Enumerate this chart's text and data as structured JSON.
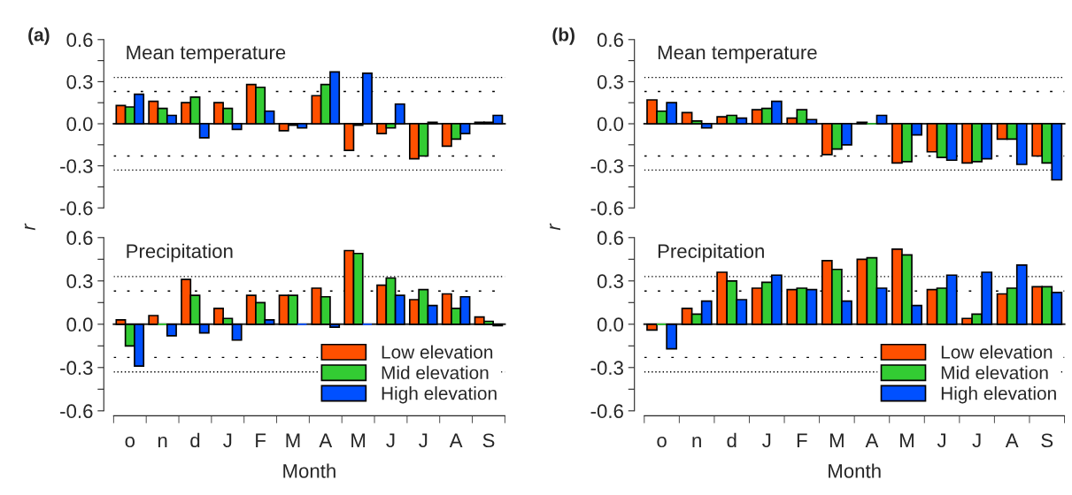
{
  "chart_data": [
    {
      "type": "bar",
      "title": "Mean temperature",
      "annotations": [
        "(a)"
      ],
      "categories": [
        null,
        null,
        null,
        null,
        null,
        null,
        null,
        null,
        null,
        null,
        null,
        null
      ],
      "series": [
        {
          "color": "#ff5000",
          "values": [
            0.13,
            0.16,
            0.15,
            0.15,
            0.28,
            -0.05,
            0.2,
            -0.19,
            -0.07,
            -0.25,
            -0.16,
            0.01
          ]
        },
        {
          "color": "#33cc33",
          "values": [
            0.12,
            0.11,
            0.19,
            0.11,
            0.26,
            -0.01,
            0.28,
            -0.01,
            -0.03,
            -0.23,
            -0.11,
            0.01
          ]
        },
        {
          "color": "#0050ff",
          "values": [
            0.21,
            0.06,
            -0.1,
            -0.04,
            0.09,
            -0.03,
            0.37,
            0.36,
            0.14,
            0.01,
            -0.07,
            0.06
          ]
        }
      ],
      "ylim": [
        -0.6,
        0.6
      ],
      "yticks": [
        {
          "value": -0.6,
          "label": "-0.6"
        },
        {
          "value": -0.45,
          "label": null
        },
        {
          "value": -0.3,
          "label": "-0.3"
        },
        {
          "value": -0.15,
          "label": null
        },
        {
          "value": 0,
          "label": "0.0"
        },
        {
          "value": 0.15,
          "label": null
        },
        {
          "value": 0.3,
          "label": "0.3"
        },
        {
          "value": 0.45,
          "label": null
        },
        {
          "value": 0.6,
          "label": "0.6"
        }
      ],
      "ref_lines": [
        {
          "axis": "y",
          "value": 0.33,
          "line_style": "dotted"
        },
        {
          "axis": "y",
          "value": 0.23,
          "line_style": "dashed"
        },
        {
          "axis": "y",
          "value": -0.23,
          "line_style": "dashed"
        },
        {
          "axis": "y",
          "value": -0.33,
          "line_style": "dotted"
        }
      ],
      "tick_labels": "y",
      "legend": false
    },
    {
      "type": "bar",
      "title": "Mean temperature",
      "annotations": [
        "(b)"
      ],
      "categories": [
        null,
        null,
        null,
        null,
        null,
        null,
        null,
        null,
        null,
        null,
        null,
        null
      ],
      "series": [
        {
          "color": "#ff5000",
          "values": [
            0.17,
            0.08,
            0.05,
            0.1,
            0.04,
            -0.22,
            0.01,
            -0.28,
            -0.2,
            -0.28,
            -0.11,
            -0.23
          ]
        },
        {
          "color": "#33cc33",
          "values": [
            0.09,
            0.02,
            0.06,
            0.11,
            0.1,
            -0.18,
            0.0,
            -0.27,
            -0.24,
            -0.27,
            -0.11,
            -0.28
          ]
        },
        {
          "color": "#0050ff",
          "values": [
            0.15,
            -0.03,
            0.04,
            0.16,
            0.03,
            -0.15,
            0.06,
            -0.08,
            -0.26,
            -0.25,
            -0.29,
            -0.4
          ]
        }
      ],
      "ylim": [
        -0.6,
        0.6
      ],
      "yticks": [
        {
          "value": -0.6,
          "label": "-0.6"
        },
        {
          "value": -0.45,
          "label": null
        },
        {
          "value": -0.3,
          "label": "-0.3"
        },
        {
          "value": -0.15,
          "label": null
        },
        {
          "value": 0,
          "label": "0.0"
        },
        {
          "value": 0.15,
          "label": null
        },
        {
          "value": 0.3,
          "label": "0.3"
        },
        {
          "value": 0.45,
          "label": null
        },
        {
          "value": 0.6,
          "label": "0.6"
        }
      ],
      "ref_lines": [
        {
          "axis": "y",
          "value": 0.33,
          "line_style": "dotted"
        },
        {
          "axis": "y",
          "value": 0.23,
          "line_style": "dashed"
        },
        {
          "axis": "y",
          "value": -0.23,
          "line_style": "dashed"
        },
        {
          "axis": "y",
          "value": -0.33,
          "line_style": "dotted"
        }
      ],
      "tick_labels": "y",
      "legend": false
    },
    {
      "type": "bar",
      "title": "Precipitation",
      "xlabel": "Month",
      "ylabel": "r",
      "categories": [
        "o",
        "n",
        "d",
        "J",
        "F",
        "M",
        "A",
        "M",
        "J",
        "J",
        "A",
        "S"
      ],
      "series": [
        {
          "name": "Low elevation",
          "color": "#ff5000",
          "values": [
            0.03,
            0.06,
            0.31,
            0.11,
            0.2,
            0.2,
            0.25,
            0.51,
            0.27,
            0.17,
            0.21,
            0.05
          ]
        },
        {
          "name": "Mid elevation",
          "color": "#33cc33",
          "values": [
            -0.15,
            0.0,
            0.2,
            0.04,
            0.15,
            0.2,
            0.19,
            0.49,
            0.32,
            0.24,
            0.11,
            0.02
          ]
        },
        {
          "name": "High elevation",
          "color": "#0050ff",
          "values": [
            -0.29,
            -0.08,
            -0.06,
            -0.11,
            0.03,
            0.0,
            -0.02,
            0.0,
            0.2,
            0.13,
            0.19,
            -0.01
          ]
        }
      ],
      "ylim": [
        -0.6,
        0.6
      ],
      "yticks": [
        {
          "value": -0.6,
          "label": "-0.6"
        },
        {
          "value": -0.45,
          "label": null
        },
        {
          "value": -0.3,
          "label": "-0.3"
        },
        {
          "value": -0.15,
          "label": null
        },
        {
          "value": 0,
          "label": "0.0"
        },
        {
          "value": 0.15,
          "label": null
        },
        {
          "value": 0.3,
          "label": "0.3"
        },
        {
          "value": 0.45,
          "label": null
        },
        {
          "value": 0.6,
          "label": "0.6"
        }
      ],
      "ref_lines": [
        {
          "axis": "y",
          "value": 0.33,
          "line_style": "dotted"
        },
        {
          "axis": "y",
          "value": 0.23,
          "line_style": "dashed"
        },
        {
          "axis": "y",
          "value": -0.23,
          "line_style": "dashed"
        },
        {
          "axis": "y",
          "value": -0.33,
          "line_style": "dotted"
        }
      ],
      "legend": "bottom right"
    },
    {
      "type": "bar",
      "title": "Precipitation",
      "xlabel": "Month",
      "ylabel": "r",
      "categories": [
        "o",
        "n",
        "d",
        "J",
        "F",
        "M",
        "A",
        "M",
        "J",
        "J",
        "A",
        "S"
      ],
      "series": [
        {
          "name": "Low elevation",
          "color": "#ff5000",
          "values": [
            -0.04,
            0.11,
            0.36,
            0.25,
            0.24,
            0.44,
            0.45,
            0.52,
            0.24,
            0.04,
            0.21,
            0.26
          ]
        },
        {
          "name": "Mid elevation",
          "color": "#33cc33",
          "values": [
            0.0,
            0.07,
            0.3,
            0.29,
            0.25,
            0.38,
            0.46,
            0.48,
            0.25,
            0.07,
            0.25,
            0.26
          ]
        },
        {
          "name": "High elevation",
          "color": "#0050ff",
          "values": [
            -0.17,
            0.16,
            0.17,
            0.34,
            0.24,
            0.16,
            0.25,
            0.13,
            0.34,
            0.36,
            0.41,
            0.22
          ]
        }
      ],
      "ylim": [
        -0.6,
        0.6
      ],
      "yticks": [
        {
          "value": -0.6,
          "label": "-0.6"
        },
        {
          "value": -0.45,
          "label": null
        },
        {
          "value": -0.3,
          "label": "-0.3"
        },
        {
          "value": -0.15,
          "label": null
        },
        {
          "value": 0,
          "label": "0.0"
        },
        {
          "value": 0.15,
          "label": null
        },
        {
          "value": 0.3,
          "label": "0.3"
        },
        {
          "value": 0.45,
          "label": null
        },
        {
          "value": 0.6,
          "label": "0.6"
        }
      ],
      "ref_lines": [
        {
          "axis": "y",
          "value": 0.33,
          "line_style": "dotted"
        },
        {
          "axis": "y",
          "value": 0.23,
          "line_style": "dashed"
        },
        {
          "axis": "y",
          "value": -0.23,
          "line_style": "dashed"
        },
        {
          "axis": "y",
          "value": -0.33,
          "line_style": "dotted"
        }
      ],
      "legend": "bottom right"
    }
  ]
}
